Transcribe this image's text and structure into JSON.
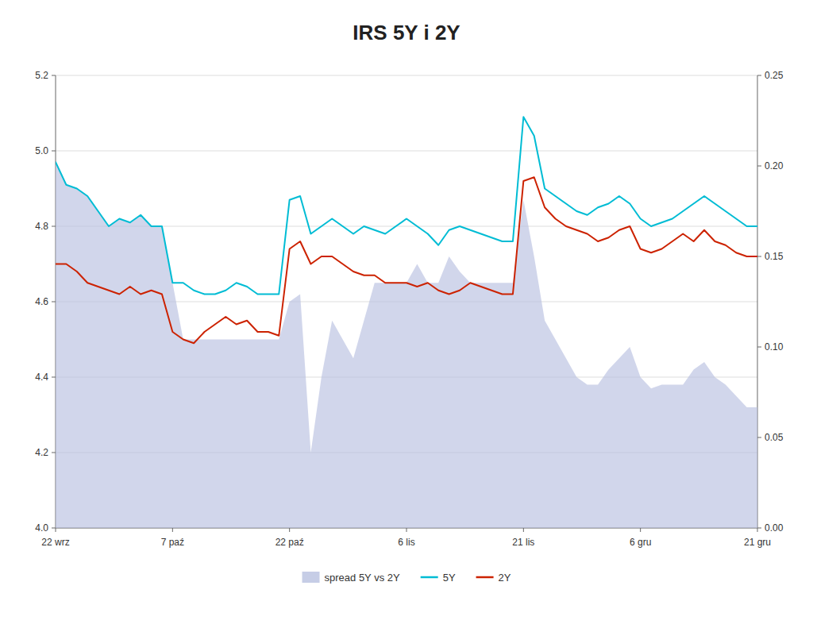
{
  "chart_data": {
    "type": "line",
    "title": "IRS 5Y i 2Y",
    "categories": [
      "22 wrz",
      null,
      null,
      null,
      null,
      null,
      null,
      null,
      null,
      null,
      null,
      "7 paź",
      null,
      null,
      null,
      null,
      null,
      null,
      null,
      null,
      null,
      null,
      "22 paź",
      null,
      null,
      null,
      null,
      null,
      null,
      null,
      null,
      null,
      null,
      "6 lis",
      null,
      null,
      null,
      null,
      null,
      null,
      null,
      null,
      null,
      null,
      "21 lis",
      null,
      null,
      null,
      null,
      null,
      null,
      null,
      null,
      null,
      null,
      "6 gru",
      null,
      null,
      null,
      null,
      null,
      null,
      null,
      null,
      null,
      null,
      "21 gru"
    ],
    "series": [
      {
        "name": "spread 5Y vs 2Y",
        "type": "area",
        "color": "#b8c0e0",
        "values": [
          4.97,
          4.91,
          4.9,
          4.88,
          4.84,
          4.8,
          4.82,
          4.81,
          4.83,
          4.8,
          4.8,
          4.65,
          4.5,
          4.5,
          4.5,
          4.5,
          4.5,
          4.5,
          4.5,
          4.5,
          4.5,
          4.5,
          4.6,
          4.62,
          4.2,
          4.4,
          4.55,
          4.5,
          4.45,
          4.55,
          4.65,
          4.65,
          4.65,
          4.65,
          4.7,
          4.65,
          4.65,
          4.72,
          4.68,
          4.65,
          4.65,
          4.65,
          4.65,
          4.65,
          4.87,
          4.72,
          4.55,
          4.5,
          4.45,
          4.4,
          4.38,
          4.38,
          4.42,
          4.45,
          4.48,
          4.4,
          4.37,
          4.38,
          4.38,
          4.38,
          4.42,
          4.44,
          4.4,
          4.38,
          4.35,
          4.32,
          4.32
        ]
      },
      {
        "name": "5Y",
        "type": "line",
        "color": "#00bcd4",
        "values": [
          4.97,
          4.91,
          4.9,
          4.88,
          4.84,
          4.8,
          4.82,
          4.81,
          4.83,
          4.8,
          4.8,
          4.65,
          4.65,
          4.63,
          4.62,
          4.62,
          4.63,
          4.65,
          4.64,
          4.62,
          4.62,
          4.62,
          4.87,
          4.88,
          4.78,
          4.8,
          4.82,
          4.8,
          4.78,
          4.8,
          4.79,
          4.78,
          4.8,
          4.82,
          4.8,
          4.78,
          4.75,
          4.79,
          4.8,
          4.79,
          4.78,
          4.77,
          4.76,
          4.76,
          5.09,
          5.04,
          4.9,
          4.88,
          4.86,
          4.84,
          4.83,
          4.85,
          4.86,
          4.88,
          4.86,
          4.82,
          4.8,
          4.81,
          4.82,
          4.84,
          4.86,
          4.88,
          4.86,
          4.84,
          4.82,
          4.8,
          4.8
        ]
      },
      {
        "name": "2Y",
        "type": "line",
        "color": "#cc2200",
        "values": [
          4.7,
          4.7,
          4.68,
          4.65,
          4.64,
          4.63,
          4.62,
          4.64,
          4.62,
          4.63,
          4.62,
          4.52,
          4.5,
          4.49,
          4.52,
          4.54,
          4.56,
          4.54,
          4.55,
          4.52,
          4.52,
          4.51,
          4.74,
          4.76,
          4.7,
          4.72,
          4.72,
          4.7,
          4.68,
          4.67,
          4.67,
          4.65,
          4.65,
          4.65,
          4.64,
          4.65,
          4.63,
          4.62,
          4.63,
          4.65,
          4.64,
          4.63,
          4.62,
          4.62,
          4.92,
          4.93,
          4.85,
          4.82,
          4.8,
          4.79,
          4.78,
          4.76,
          4.77,
          4.79,
          4.8,
          4.74,
          4.73,
          4.74,
          4.76,
          4.78,
          4.76,
          4.79,
          4.76,
          4.75,
          4.73,
          4.72,
          4.72
        ]
      }
    ],
    "ylim": [
      4.0,
      5.2
    ],
    "yticks": [
      {
        "value": 4.0,
        "label": "4.0"
      },
      4.2,
      4.4,
      4.6,
      4.8,
      {
        "value": 5.0,
        "label": "5.0"
      },
      5.2
    ],
    "y2lim": [
      0.0,
      0.25
    ],
    "y2ticks": [
      {
        "value": 0.0,
        "label": "0.00"
      },
      {
        "value": 0.05,
        "label": "0.05"
      },
      {
        "value": 0.1,
        "label": "0.10"
      },
      {
        "value": 0.15,
        "label": "0.15"
      },
      {
        "value": 0.2,
        "label": "0.20"
      },
      {
        "value": 0.25,
        "label": "0.25"
      }
    ],
    "grid": true,
    "legend": "bottom"
  }
}
